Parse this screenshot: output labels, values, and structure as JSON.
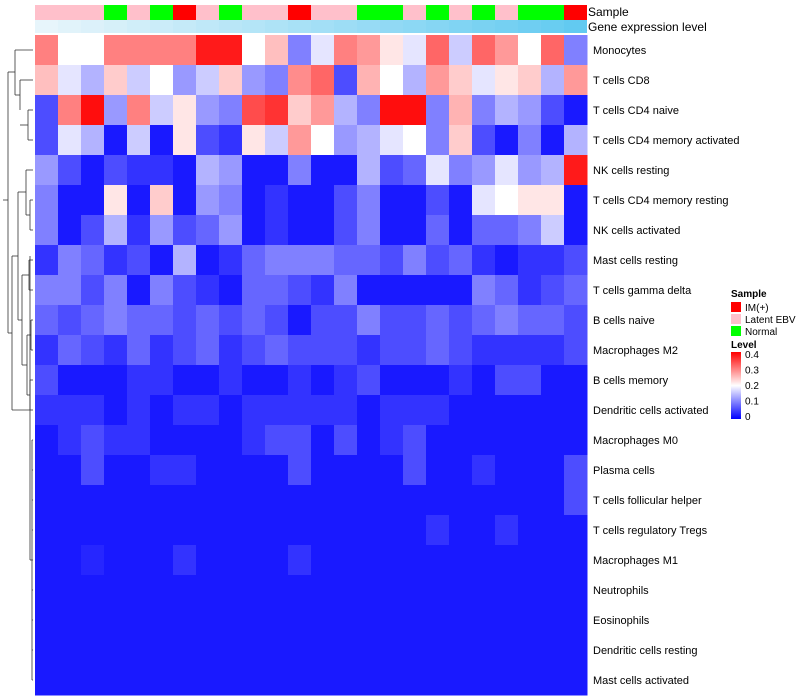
{
  "chart_data": {
    "type": "heatmap",
    "annotation_labels": [
      "Sample",
      "Gene expression level"
    ],
    "sample_groups": [
      "IM(+)",
      "Latent EBV",
      "Normal"
    ],
    "sample_group_colors": {
      "IM(+)": "#ff0000",
      "Latent EBV": "#ffc0cb",
      "Normal": "#00ff00"
    },
    "sample_annotation": [
      "Latent EBV",
      "Latent EBV",
      "Latent EBV",
      "Normal",
      "Latent EBV",
      "Normal",
      "IM(+)",
      "Latent EBV",
      "Normal",
      "Latent EBV",
      "Latent EBV",
      "IM(+)",
      "Latent EBV",
      "Latent EBV",
      "Normal",
      "Normal",
      "Latent EBV",
      "Normal",
      "Latent EBV",
      "Normal",
      "Latent EBV",
      "Normal",
      "Normal",
      "IM(+)"
    ],
    "gene_expression_level": [
      0.02,
      0.06,
      0.1,
      0.14,
      0.18,
      0.22,
      0.26,
      0.3,
      0.34,
      0.38,
      0.42,
      0.46,
      0.5,
      0.54,
      0.58,
      0.62,
      0.66,
      0.7,
      0.74,
      0.78,
      0.82,
      0.86,
      0.9,
      0.95
    ],
    "gene_expression_colors": [
      "#eaf6fb",
      "#5bc8f0"
    ],
    "rows": [
      "Monocytes",
      "T cells CD8",
      "T cells CD4 naive",
      "T cells CD4 memory activated",
      "NK cells resting",
      "T cells CD4 memory resting",
      "NK cells activated",
      "Mast cells resting",
      "T cells gamma delta",
      "B cells naive",
      "Macrophages M2",
      "B cells memory",
      "Dendritic cells activated",
      "Macrophages M0",
      "Plasma cells",
      "T cells follicular helper",
      "T cells regulatory  Tregs",
      "Macrophages M1",
      "Neutrophils",
      "Eosinophils",
      "Dendritic cells resting",
      "Mast cells activated"
    ],
    "values": [
      [
        0.3,
        0.2,
        0.2,
        0.3,
        0.3,
        0.3,
        0.3,
        0.38,
        0.38,
        0.2,
        0.25,
        0.1,
        0.18,
        0.3,
        0.28,
        0.22,
        0.18,
        0.32,
        0.16,
        0.32,
        0.28,
        0.2,
        0.32,
        0.1
      ],
      [
        0.25,
        0.18,
        0.14,
        0.24,
        0.16,
        0.2,
        0.12,
        0.16,
        0.24,
        0.12,
        0.1,
        0.29,
        0.32,
        0.06,
        0.26,
        0.2,
        0.14,
        0.28,
        0.24,
        0.18,
        0.22,
        0.24,
        0.14,
        0.28
      ],
      [
        0.06,
        0.3,
        0.39,
        0.12,
        0.3,
        0.16,
        0.22,
        0.12,
        0.1,
        0.34,
        0.36,
        0.24,
        0.28,
        0.14,
        0.1,
        0.39,
        0.39,
        0.1,
        0.26,
        0.1,
        0.14,
        0.12,
        0.06,
        0.02
      ],
      [
        0.06,
        0.18,
        0.14,
        0.02,
        0.16,
        0.02,
        0.22,
        0.06,
        0.04,
        0.22,
        0.16,
        0.28,
        0.2,
        0.12,
        0.14,
        0.18,
        0.2,
        0.1,
        0.24,
        0.06,
        0.02,
        0.1,
        0.02,
        0.14
      ],
      [
        0.12,
        0.06,
        0.02,
        0.06,
        0.04,
        0.04,
        0.02,
        0.14,
        0.12,
        0.02,
        0.02,
        0.1,
        0.02,
        0.02,
        0.14,
        0.06,
        0.08,
        0.18,
        0.1,
        0.12,
        0.18,
        0.12,
        0.14,
        0.38
      ],
      [
        0.1,
        0.02,
        0.02,
        0.22,
        0.02,
        0.24,
        0.02,
        0.12,
        0.1,
        0.02,
        0.04,
        0.02,
        0.02,
        0.06,
        0.1,
        0.02,
        0.02,
        0.06,
        0.02,
        0.18,
        0.2,
        0.22,
        0.22,
        0.02
      ],
      [
        0.1,
        0.02,
        0.06,
        0.14,
        0.04,
        0.12,
        0.06,
        0.08,
        0.12,
        0.02,
        0.04,
        0.02,
        0.02,
        0.06,
        0.1,
        0.02,
        0.02,
        0.08,
        0.02,
        0.08,
        0.08,
        0.1,
        0.16,
        0.02
      ],
      [
        0.04,
        0.1,
        0.08,
        0.04,
        0.06,
        0.02,
        0.14,
        0.02,
        0.04,
        0.08,
        0.1,
        0.1,
        0.1,
        0.08,
        0.08,
        0.06,
        0.1,
        0.06,
        0.08,
        0.04,
        0.02,
        0.04,
        0.04,
        0.06
      ],
      [
        0.1,
        0.1,
        0.06,
        0.1,
        0.02,
        0.1,
        0.06,
        0.04,
        0.02,
        0.08,
        0.08,
        0.06,
        0.04,
        0.1,
        0.02,
        0.02,
        0.02,
        0.02,
        0.02,
        0.1,
        0.08,
        0.04,
        0.06,
        0.08
      ],
      [
        0.08,
        0.06,
        0.08,
        0.1,
        0.08,
        0.08,
        0.06,
        0.08,
        0.06,
        0.08,
        0.06,
        0.02,
        0.06,
        0.06,
        0.1,
        0.06,
        0.06,
        0.08,
        0.06,
        0.08,
        0.1,
        0.08,
        0.08,
        0.06
      ],
      [
        0.04,
        0.08,
        0.06,
        0.04,
        0.08,
        0.04,
        0.06,
        0.08,
        0.04,
        0.06,
        0.08,
        0.06,
        0.06,
        0.06,
        0.04,
        0.06,
        0.06,
        0.08,
        0.06,
        0.04,
        0.04,
        0.04,
        0.04,
        0.06
      ],
      [
        0.06,
        0.02,
        0.02,
        0.02,
        0.04,
        0.04,
        0.02,
        0.02,
        0.04,
        0.02,
        0.02,
        0.04,
        0.02,
        0.04,
        0.06,
        0.02,
        0.02,
        0.02,
        0.04,
        0.02,
        0.06,
        0.06,
        0.02,
        0.02
      ],
      [
        0.04,
        0.04,
        0.04,
        0.02,
        0.04,
        0.02,
        0.04,
        0.04,
        0.02,
        0.04,
        0.04,
        0.04,
        0.04,
        0.04,
        0.02,
        0.04,
        0.04,
        0.04,
        0.02,
        0.02,
        0.02,
        0.02,
        0.02,
        0.02
      ],
      [
        0.02,
        0.04,
        0.06,
        0.04,
        0.04,
        0.02,
        0.02,
        0.02,
        0.02,
        0.04,
        0.06,
        0.06,
        0.02,
        0.06,
        0.02,
        0.04,
        0.06,
        0.02,
        0.02,
        0.02,
        0.02,
        0.02,
        0.02,
        0.02
      ],
      [
        0.02,
        0.02,
        0.06,
        0.02,
        0.02,
        0.04,
        0.04,
        0.02,
        0.02,
        0.02,
        0.02,
        0.06,
        0.02,
        0.02,
        0.02,
        0.02,
        0.06,
        0.02,
        0.02,
        0.04,
        0.02,
        0.02,
        0.02,
        0.06
      ],
      [
        0.02,
        0.02,
        0.02,
        0.02,
        0.02,
        0.02,
        0.02,
        0.02,
        0.02,
        0.02,
        0.02,
        0.02,
        0.02,
        0.02,
        0.02,
        0.02,
        0.02,
        0.02,
        0.02,
        0.02,
        0.02,
        0.02,
        0.02,
        0.06
      ],
      [
        0.02,
        0.02,
        0.02,
        0.02,
        0.02,
        0.02,
        0.02,
        0.02,
        0.02,
        0.02,
        0.02,
        0.02,
        0.02,
        0.02,
        0.02,
        0.02,
        0.02,
        0.04,
        0.02,
        0.02,
        0.04,
        0.02,
        0.02,
        0.02
      ],
      [
        0.02,
        0.02,
        0.03,
        0.02,
        0.02,
        0.02,
        0.04,
        0.02,
        0.02,
        0.02,
        0.02,
        0.04,
        0.02,
        0.02,
        0.02,
        0.02,
        0.02,
        0.02,
        0.02,
        0.02,
        0.02,
        0.02,
        0.02,
        0.02
      ],
      [
        0.02,
        0.02,
        0.02,
        0.02,
        0.02,
        0.02,
        0.02,
        0.02,
        0.02,
        0.02,
        0.02,
        0.02,
        0.02,
        0.02,
        0.02,
        0.02,
        0.02,
        0.02,
        0.02,
        0.02,
        0.02,
        0.02,
        0.02,
        0.02
      ],
      [
        0.02,
        0.02,
        0.02,
        0.02,
        0.02,
        0.02,
        0.02,
        0.02,
        0.02,
        0.02,
        0.02,
        0.02,
        0.02,
        0.02,
        0.02,
        0.02,
        0.02,
        0.02,
        0.02,
        0.02,
        0.02,
        0.02,
        0.02,
        0.02
      ],
      [
        0.02,
        0.02,
        0.02,
        0.02,
        0.02,
        0.02,
        0.02,
        0.02,
        0.02,
        0.02,
        0.02,
        0.02,
        0.02,
        0.02,
        0.02,
        0.02,
        0.02,
        0.02,
        0.02,
        0.02,
        0.02,
        0.02,
        0.02,
        0.02
      ],
      [
        0.02,
        0.02,
        0.02,
        0.02,
        0.02,
        0.02,
        0.02,
        0.02,
        0.02,
        0.02,
        0.02,
        0.02,
        0.02,
        0.02,
        0.02,
        0.02,
        0.02,
        0.02,
        0.02,
        0.02,
        0.02,
        0.02,
        0.02,
        0.02
      ]
    ],
    "color_scale": {
      "min": 0,
      "max": 0.4,
      "low": "#0000ff",
      "mid": "#ffffff",
      "mid_value": 0.2,
      "high": "#ff0000"
    },
    "legend": {
      "sample_title": "Sample",
      "level_title": "Level",
      "level_ticks": [
        "0.4",
        "0.3",
        "0.2",
        "0.1",
        "0"
      ]
    }
  }
}
